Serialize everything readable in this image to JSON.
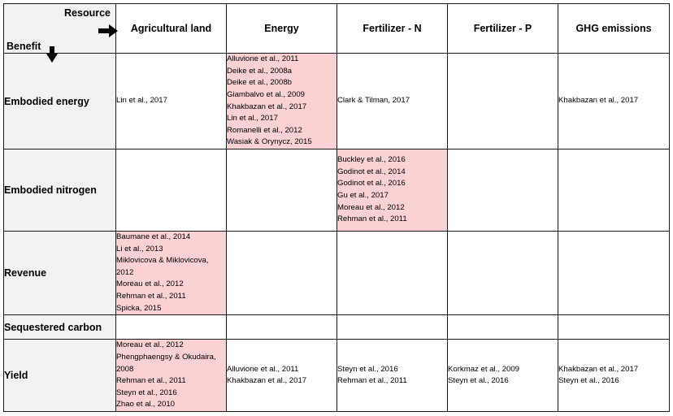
{
  "header": {
    "resource_label": "Resource",
    "benefit_label": "Benefit"
  },
  "columns": [
    "Agricultural land",
    "Energy",
    "Fertilizer - N",
    "Fertilizer - P",
    "GHG emissions"
  ],
  "rows": [
    {
      "label": "Embodied energy",
      "cells": [
        {
          "highlight": false,
          "refs": [
            "Lin et al., 2017"
          ]
        },
        {
          "highlight": true,
          "refs": [
            "Alluvione et al., 2011",
            "Deike et al., 2008a",
            "Deike et al., 2008b",
            "Giambalvo et al., 2009",
            "Khakbazan et al., 2017",
            "Lin et al., 2017",
            "Romanelli et al., 2012",
            "Wasiak & Orynycz, 2015"
          ]
        },
        {
          "highlight": false,
          "refs": [
            "Clark & Tilman, 2017"
          ]
        },
        {
          "highlight": false,
          "refs": []
        },
        {
          "highlight": false,
          "refs": [
            "Khakbazan et al., 2017"
          ]
        }
      ]
    },
    {
      "label": "Embodied nitrogen",
      "cells": [
        {
          "highlight": false,
          "refs": []
        },
        {
          "highlight": false,
          "refs": []
        },
        {
          "highlight": true,
          "refs": [
            "Buckley et al., 2016",
            "Godinot et al., 2014",
            "Godinot et al., 2016",
            "Gu et al., 2017",
            "Moreau et al., 2012",
            "Rehman et al., 2011"
          ]
        },
        {
          "highlight": false,
          "refs": []
        },
        {
          "highlight": false,
          "refs": []
        }
      ]
    },
    {
      "label": "Revenue",
      "cells": [
        {
          "highlight": true,
          "refs": [
            "Baumane et al., 2014",
            "Li et al., 2013",
            "Miklovicova & Miklovicova, 2012",
            "Moreau et al., 2012",
            "Rehman et al., 2011",
            "Spicka, 2015"
          ]
        },
        {
          "highlight": false,
          "refs": []
        },
        {
          "highlight": false,
          "refs": []
        },
        {
          "highlight": false,
          "refs": []
        },
        {
          "highlight": false,
          "refs": []
        }
      ]
    },
    {
      "label": "Sequestered carbon",
      "cells": [
        {
          "highlight": false,
          "refs": []
        },
        {
          "highlight": false,
          "refs": []
        },
        {
          "highlight": false,
          "refs": []
        },
        {
          "highlight": false,
          "refs": []
        },
        {
          "highlight": false,
          "refs": []
        }
      ]
    },
    {
      "label": "Yield",
      "cells": [
        {
          "highlight": true,
          "refs": [
            "Moreau et al., 2012",
            "Phengphaengsy & Okudaira, 2008",
            "Rehman et al., 2011",
            "Steyn et al., 2016",
            "Zhao et al., 2010"
          ]
        },
        {
          "highlight": false,
          "refs": [
            "Alluvione et al., 2011",
            "Khakbazan et al., 2017"
          ]
        },
        {
          "highlight": false,
          "refs": [
            "Steyn et al., 2016",
            "Rehman et al., 2011"
          ]
        },
        {
          "highlight": false,
          "refs": [
            "Korkmaz et al., 2009",
            "Steyn et al., 2016"
          ]
        },
        {
          "highlight": false,
          "refs": [
            "Khakbazan et al., 2017",
            "Steyn et al., 2016"
          ]
        }
      ]
    }
  ],
  "colors": {
    "highlight": "#fcd1d3",
    "header_fill": "#f2f2f2",
    "grid": "#1a1a1a"
  }
}
